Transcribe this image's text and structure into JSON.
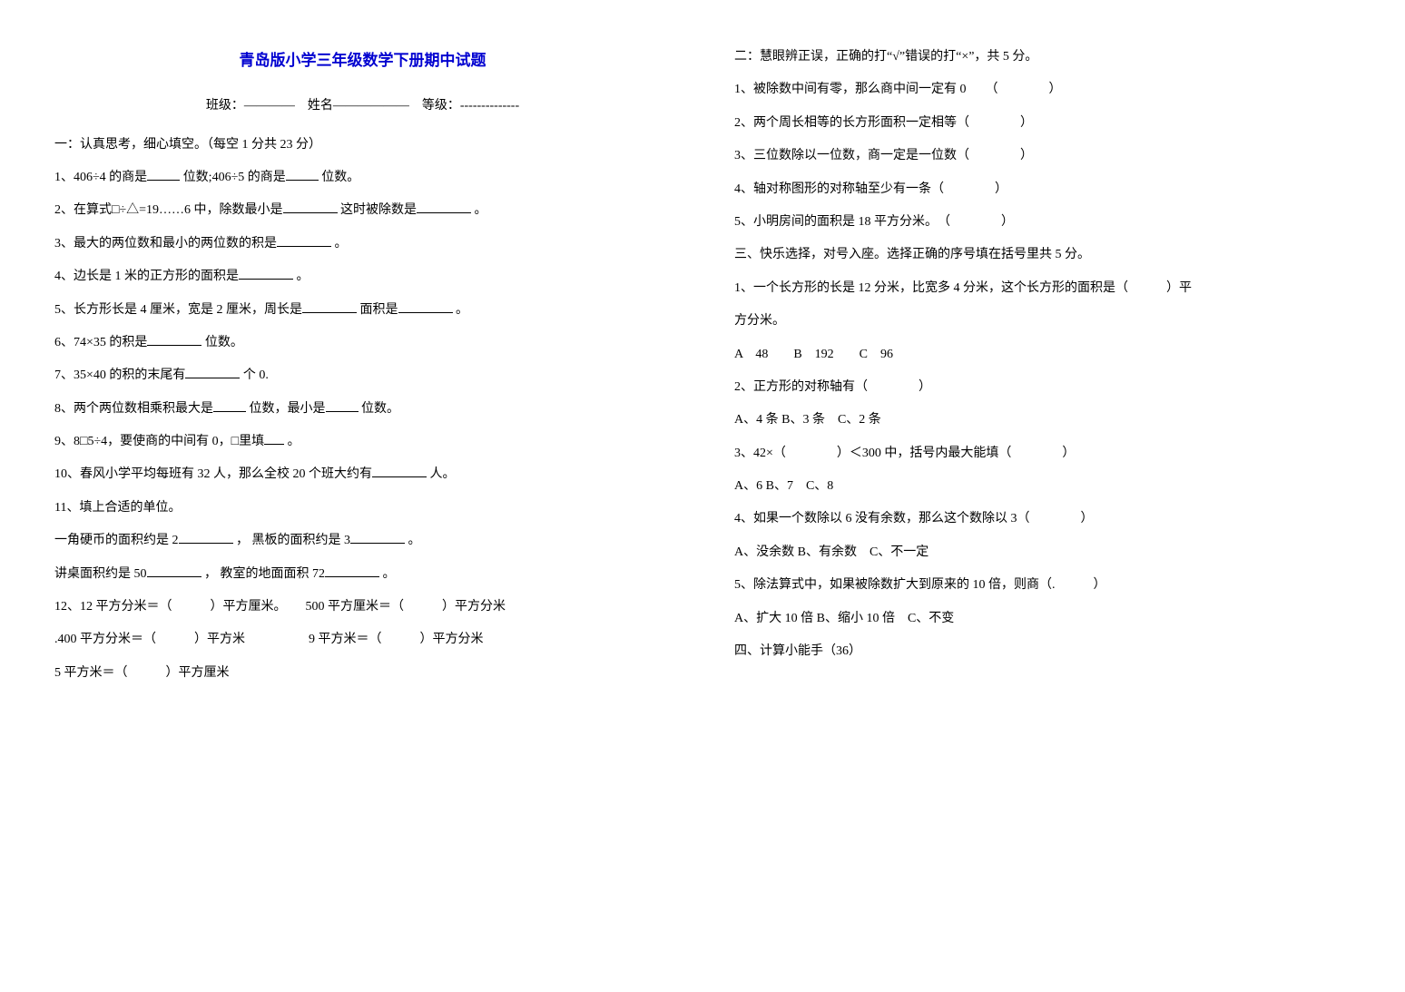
{
  "title": "青岛版小学三年级数学下册期中试题",
  "info": {
    "class_label": "班级：————",
    "name_label": "姓名——————",
    "grade_label": "等级：--------------"
  },
  "left": {
    "sec1_head": "一：认真思考，细心填空。（每空 1 分共 23 分）",
    "q1a": "1、406÷4 的商是",
    "q1b": "位数;406÷5 的商是",
    "q1c": "位数。",
    "q2a": "2、在算式□÷△=19……6 中，除数最小是",
    "q2b": "这时被除数是",
    "q2c": "。",
    "q3a": "3、最大的两位数和最小的两位数的积是",
    "q3b": "。",
    "q4a": "4、边长是 1 米的正方形的面积是",
    "q4b": "。",
    "q5a": "5、长方形长是 4 厘米，宽是 2 厘米，周长是",
    "q5b": "面积是",
    "q5c": "。",
    "q6a": "6、74×35 的积是",
    "q6b": "位数。",
    "q7a": "7、35×40 的积的末尾有",
    "q7b": "个 0.",
    "q8a": "8、两个两位数相乘积最大是",
    "q8b": "位数，最小是",
    "q8c": "位数。",
    "q9a": "9、8□5÷4，要使商的中间有 0，□里填",
    "q9b": "。",
    "q10a": "10、春风小学平均每班有 32 人，那么全校 20 个班大约有",
    "q10b": "人。",
    "q11": "11、填上合适的单位。",
    "q11_1a": "一角硬币的面积约是 2",
    "q11_1b": "，    黑板的面积约是 3",
    "q11_1c": "。",
    "q11_2a": "讲桌面积约是 50",
    "q11_2b": "，          教室的地面面积 72",
    "q11_2c": "。",
    "q12": "12、12 平方分米＝（　　　）平方厘米。　　500 平方厘米＝（　　　）平方分米",
    "q12b": ".400 平方分米＝（　　　）平方米　　　　　9 平方米＝（　　　）平方分米",
    "q12c": "5 平方米＝（　　　）平方厘米"
  },
  "right": {
    "sec2_head": "二：慧眼辨正误，正确的打“√”错误的打“×”，共 5 分。",
    "s2q1": "1、被除数中间有零，那么商中间一定有 0　　（　　　　）",
    "s2q2": "2、两个周长相等的长方形面积一定相等（　　　　）",
    "s2q3": "3、三位数除以一位数，商一定是一位数（　　　　）",
    "s2q4": "4、轴对称图形的对称轴至少有一条（　　　　）",
    "s2q5": "5、小明房间的面积是 18 平方分米。　（　　　　）",
    "sec3_head": "三、快乐选择，对号入座。选择正确的序号填在括号里共 5 分。",
    "s3q1": "1、一个长方形的长是 12 分米，比宽多 4 分米，这个长方形的面积是（　　　）平",
    "s3q1b": "方分米。",
    "s3q1opt": "A　48　　B　192　　C　96",
    "s3q2": "2、正方形的对称轴有（　　　　）",
    "s3q2opt": "A、4 条 B、3 条　C、2 条",
    "s3q3": "3、42×（　　　　）＜300 中，括号内最大能填（　　　　）",
    "s3q3opt": "A、6 B、7　C、8",
    "s3q4": "4、如果一个数除以 6 没有余数，那么这个数除以 3（　　　　）",
    "s3q4opt": "A、没余数 B、有余数　C、不一定",
    "s3q5": "5、除法算式中，如果被除数扩大到原来的 10 倍，则商（.　　　）",
    "s3q5opt": "A、扩大 10 倍 B、缩小 10 倍　C、不变",
    "sec4_head": "四、计算小能手（36）"
  }
}
